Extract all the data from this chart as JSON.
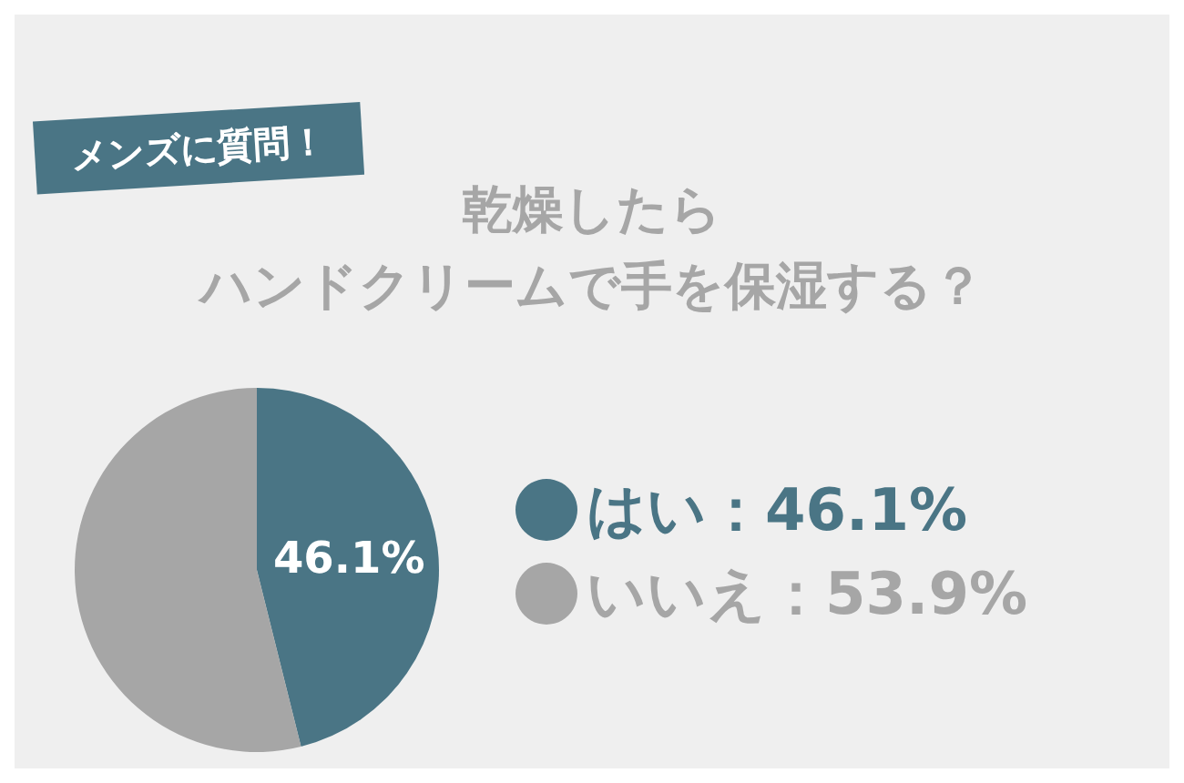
{
  "chart_data": {
    "type": "pie",
    "title": "乾燥したら",
    "subtitle": "ハンドクリームで手を保湿する？",
    "annotations": [
      "メンズに質問！"
    ],
    "categories": [
      "はい：46.1%",
      "いいえ：53.9%"
    ],
    "values": [
      46.1,
      53.9
    ],
    "colors": [
      "#4a7585",
      "#a6a6a6"
    ],
    "value_labels": [
      "46.1%",
      null
    ],
    "legend": "right"
  }
}
